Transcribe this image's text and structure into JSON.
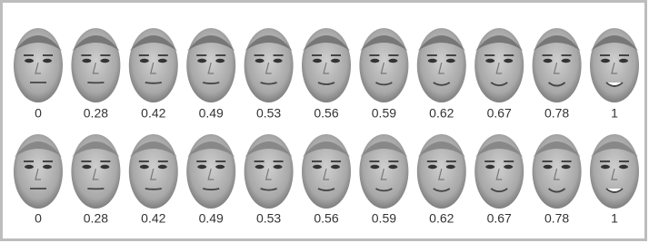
{
  "rows": [
    {
      "labels": [
        "0",
        "0.28",
        "0.42",
        "0.49",
        "0.53",
        "0.56",
        "0.59",
        "0.62",
        "0.67",
        "0.78",
        "1"
      ]
    },
    {
      "labels": [
        "0",
        "0.28",
        "0.42",
        "0.49",
        "0.53",
        "0.56",
        "0.59",
        "0.62",
        "0.67",
        "0.78",
        "1"
      ]
    }
  ]
}
